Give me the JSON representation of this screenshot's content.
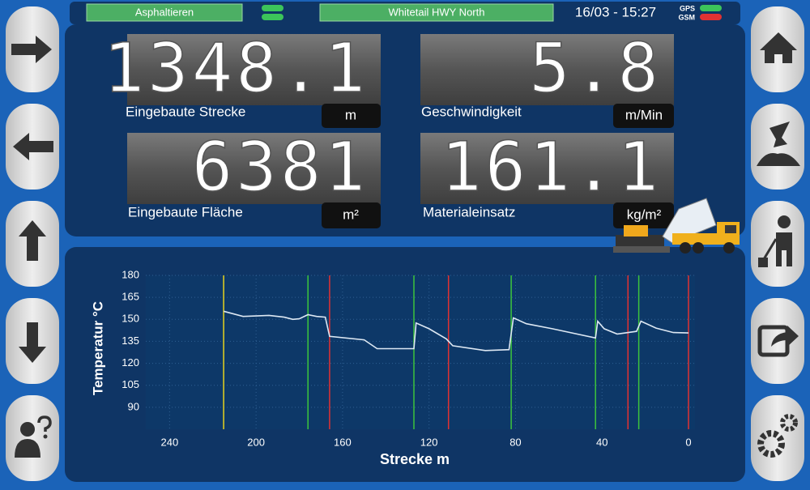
{
  "status_bar": {
    "mode": "Asphaltieren",
    "project": "Whitetail HWY North",
    "datetime": "16/03 - 15:27",
    "gps_label": "GPS",
    "gsm_label": "GSM"
  },
  "displays": [
    {
      "value": 1348.1,
      "unit": "m",
      "label": "Eingebaute Strecke"
    },
    {
      "value": 5.8,
      "unit": "m/Min",
      "label": "Geschwindigkeit"
    },
    {
      "value": 6381,
      "unit": "m²",
      "label": "Eingebaute Fläche"
    },
    {
      "value": 161.1,
      "unit": "kg/m²",
      "label": "Materialeinsatz"
    }
  ],
  "chart_data": {
    "type": "line",
    "xlabel": "Strecke m",
    "ylabel": "Temperatur °C",
    "x": [
      215,
      206,
      194,
      187,
      183,
      180,
      176,
      172,
      168,
      166,
      150,
      144,
      127,
      126,
      120,
      112,
      109,
      94,
      83,
      81,
      75,
      63,
      43,
      42,
      39,
      33,
      24,
      22,
      15,
      7,
      0
    ],
    "series": [
      {
        "name": "Temperatur",
        "color": "#dde8f3",
        "values": [
          155.5,
          152,
          152.7,
          151.5,
          150,
          150.4,
          153.2,
          152,
          151.5,
          138.4,
          136,
          130,
          130,
          147.5,
          143.6,
          136.7,
          132,
          128.7,
          129.3,
          151,
          147,
          143.6,
          137.3,
          148.7,
          143.6,
          140,
          141.8,
          148.7,
          144,
          141,
          140.7
        ]
      }
    ],
    "markers": [
      {
        "x": 215,
        "color": "#e6d21e"
      },
      {
        "x": 176,
        "color": "#3cc43c"
      },
      {
        "x": 166,
        "color": "#e03232"
      },
      {
        "x": 127,
        "color": "#3cc43c"
      },
      {
        "x": 111,
        "color": "#e03232"
      },
      {
        "x": 82,
        "color": "#3cc43c"
      },
      {
        "x": 43,
        "color": "#3cc43c"
      },
      {
        "x": 28,
        "color": "#e03232"
      },
      {
        "x": 23,
        "color": "#3cc43c"
      },
      {
        "x": 0,
        "color": "#e03232"
      }
    ],
    "xlim": [
      251,
      -3
    ],
    "ylim": [
      75,
      180
    ],
    "xticks": [
      240,
      200,
      160,
      120,
      80,
      40,
      0
    ],
    "yticks": [
      90,
      105,
      120,
      135,
      150,
      165,
      180
    ],
    "grid": true
  }
}
